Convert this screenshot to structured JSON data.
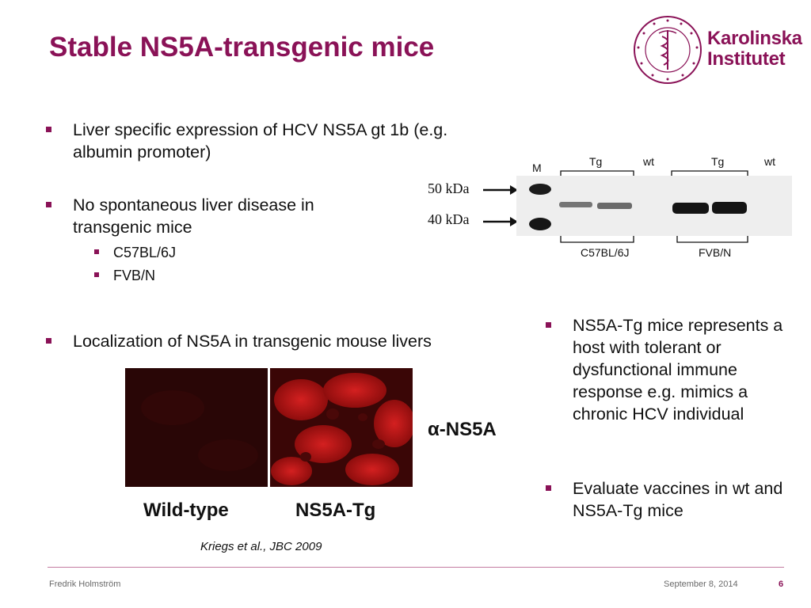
{
  "slide": {
    "title": "Stable NS5A-transgenic mice",
    "logo": {
      "line1": "Karolinska",
      "line2": "Institutet",
      "seal_text": "KAROLINSKA INSTITUTET • ANNO 1810"
    },
    "left_bullets": [
      {
        "text": "Liver specific expression of HCV NS5A gt 1b (e.g. albumin promoter)"
      },
      {
        "text": "No spontaneous liver disease in transgenic mice",
        "subitems": [
          "C57BL/6J",
          "FVB/N"
        ]
      },
      {
        "text": "Localization of NS5A in transgenic mouse livers"
      }
    ],
    "right_bullets": [
      {
        "text": "NS5A-Tg mice represents a host with tolerant or dysfunctional immune response e.g. mimics a chronic HCV individual"
      },
      {
        "text": "Evaluate vaccines in wt and NS5A-Tg mice"
      }
    ],
    "western_blot": {
      "marker_label": "M",
      "lane_labels": [
        "Tg",
        "wt",
        "Tg",
        "wt"
      ],
      "size_markers": [
        "50 kDa",
        "40 kDa"
      ],
      "strains": [
        "C57BL/6J",
        "FVB/N"
      ]
    },
    "microscopy": {
      "antibody_label": "α-NS5A",
      "panel_labels": [
        "Wild-type",
        "NS5A-Tg"
      ]
    },
    "citation": "Kriegs et al., JBC 2009",
    "footer": {
      "author": "Fredrik Holmström",
      "date": "September 8, 2014",
      "page": "6"
    },
    "colors": {
      "brand": "#8a1257",
      "fluorescence": "#c41a1a"
    }
  }
}
